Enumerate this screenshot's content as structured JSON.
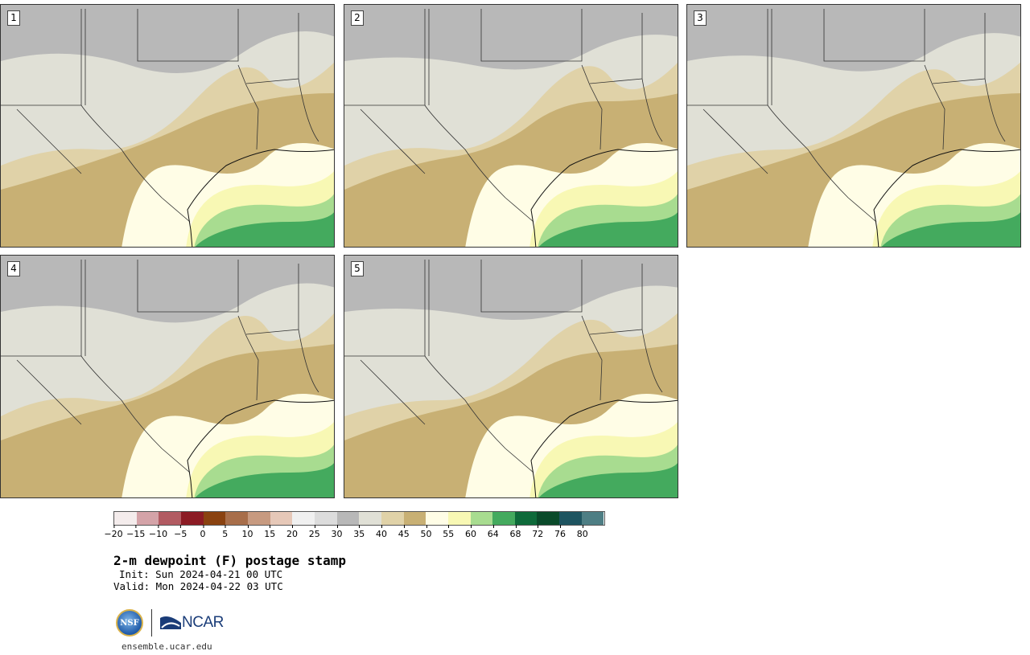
{
  "panels": [
    {
      "label": "1"
    },
    {
      "label": "2"
    },
    {
      "label": "3"
    },
    {
      "label": "4"
    },
    {
      "label": "5"
    }
  ],
  "colorbar": {
    "colors": [
      "#f4ecec",
      "#d4a3a8",
      "#b25b62",
      "#8c1b24",
      "#8a4210",
      "#a86e4a",
      "#c79a80",
      "#e6c8b8",
      "#f0f0f0",
      "#dcdcdc",
      "#b8b8b8",
      "#e0e0d6",
      "#e0d2a8",
      "#c8b074",
      "#fffde6",
      "#f8f8b4",
      "#a8dc90",
      "#44aa5e",
      "#0e6a3a",
      "#0a4a2a",
      "#1e5460",
      "#4e7e84"
    ],
    "ticks": [
      "−20",
      "−15",
      "−10",
      "−5",
      "0",
      "5",
      "10",
      "15",
      "20",
      "25",
      "30",
      "35",
      "40",
      "45",
      "50",
      "55",
      "60",
      "64",
      "68",
      "72",
      "76",
      "80"
    ]
  },
  "title": "2-m dewpoint (F) postage stamp",
  "init": "Init: Sun 2024-04-21 00 UTC",
  "valid": "Valid: Mon 2024-04-22 03 UTC",
  "logos": {
    "nsf": "NSF",
    "ncar": "NCAR"
  },
  "url": "ensemble.ucar.edu"
}
